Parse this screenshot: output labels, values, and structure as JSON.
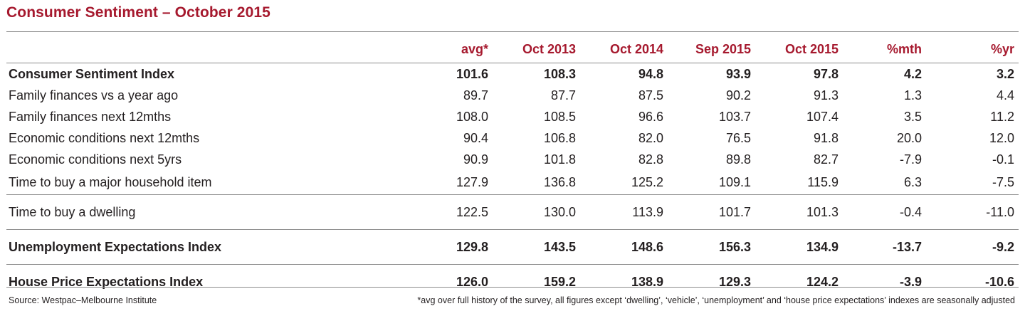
{
  "title": "Consumer Sentiment – October 2015",
  "table": {
    "headers": [
      "avg*",
      "Oct 2013",
      "Oct 2014",
      "Sep 2015",
      "Oct 2015",
      "%mth",
      "%yr"
    ],
    "rows": [
      {
        "label": "Consumer Sentiment Index",
        "values": [
          "101.6",
          "108.3",
          "94.8",
          "93.9",
          "97.8",
          "4.2",
          "3.2"
        ]
      },
      {
        "label": "Family finances vs a year ago",
        "values": [
          "89.7",
          "87.7",
          "87.5",
          "90.2",
          "91.3",
          "1.3",
          "4.4"
        ]
      },
      {
        "label": "Family finances next 12mths",
        "values": [
          "108.0",
          "108.5",
          "96.6",
          "103.7",
          "107.4",
          "3.5",
          "11.2"
        ]
      },
      {
        "label": "Economic conditions next 12mths",
        "values": [
          "90.4",
          "106.8",
          "82.0",
          "76.5",
          "91.8",
          "20.0",
          "12.0"
        ]
      },
      {
        "label": "Economic conditions next 5yrs",
        "values": [
          "90.9",
          "101.8",
          "82.8",
          "89.8",
          "82.7",
          "-7.9",
          "-0.1"
        ]
      },
      {
        "label": "Time to buy a major household item",
        "values": [
          "127.9",
          "136.8",
          "125.2",
          "109.1",
          "115.9",
          "6.3",
          "-7.5"
        ]
      },
      {
        "label": "Time to buy a dwelling",
        "values": [
          "122.5",
          "130.0",
          "113.9",
          "101.7",
          "101.3",
          "-0.4",
          "-11.0"
        ]
      },
      {
        "label": "Unemployment Expectations Index",
        "values": [
          "129.8",
          "143.5",
          "148.6",
          "156.3",
          "134.9",
          "-13.7",
          "-9.2"
        ]
      },
      {
        "label": "House Price Expectations Index",
        "values": [
          "126.0",
          "159.2",
          "138.9",
          "129.3",
          "124.2",
          "-3.9",
          "-10.6"
        ]
      }
    ]
  },
  "footer": {
    "source": "Source: Westpac–Melbourne Institute",
    "note": "*avg over full history of the survey, all figures except ‘dwelling’, ‘vehicle’, ‘unemployment’ and ‘house price expectations’ indexes are seasonally adjusted"
  },
  "colors": {
    "accent": "#a6192e",
    "text": "#231f20",
    "rule": "#8c8c8c"
  }
}
